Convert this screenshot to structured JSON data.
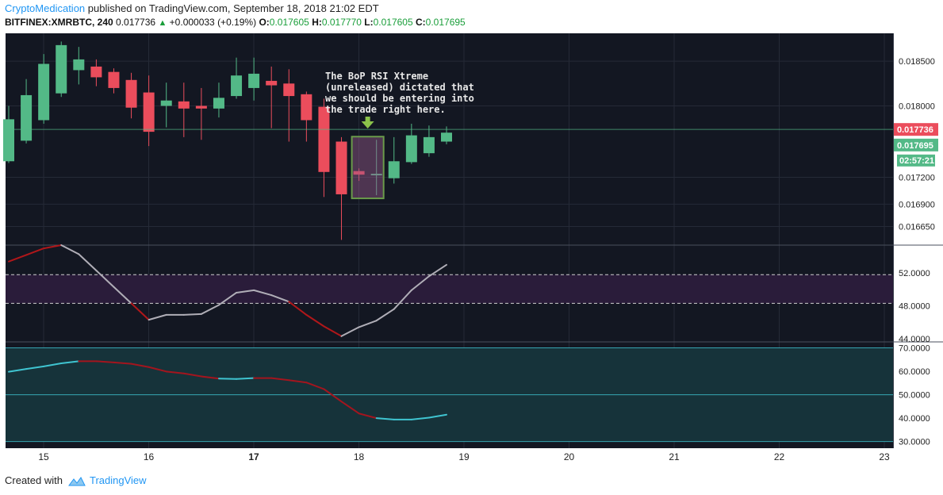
{
  "header": {
    "author": "CryptoMedication",
    "published": " published on TradingView.com, September 18, 2018 21:02 EDT",
    "symbol": "BITFINEX:XMRBTC, 240",
    "last": "0.017736",
    "change_arrow": "▲",
    "change": "+0.000033 (+0.19%)",
    "o_label": "O:",
    "o_value": "0.017605",
    "h_label": "H:",
    "h_value": "0.017770",
    "l_label": "L:",
    "l_value": "0.017605",
    "c_label": "C:",
    "c_value": "0.017695"
  },
  "footer": {
    "created_with": "Created with",
    "brand": "TradingView"
  },
  "colors": {
    "background": "#131722",
    "grid": "#252a37",
    "up": "#53b987",
    "down": "#eb4d5c",
    "rsi_bull": "#b0aeb7",
    "rsi_bear": "#b0171a",
    "osc_bull": "#3fc4d0",
    "osc_bear": "#a3151e",
    "rsi_band": "#2a1c3a",
    "osc_fill": "#16333a",
    "annotation": "#e8e8e8",
    "highlight_box": "#6a9a4a"
  },
  "annotation": {
    "lines": [
      "The BoP RSI Xtreme",
      "(unreleased) dictated that",
      "we should be entering into",
      "the trade right here."
    ],
    "arrow": "green-down-arrow"
  },
  "chart_data": [
    {
      "type": "candlestick",
      "x_ticks": [
        "15",
        "16",
        "17",
        "18",
        "19",
        "20",
        "21",
        "22",
        "23"
      ],
      "y_ticks": [
        "0.018500",
        "0.018000",
        "0.017200",
        "0.016900",
        "0.016650"
      ],
      "price_labels": {
        "last": "0.017736",
        "close": "0.017695",
        "countdown": "02:57:21"
      },
      "ylim": [
        0.01645,
        0.01875
      ],
      "candles": [
        {
          "o": 0.01738,
          "h": 0.018,
          "l": 0.01736,
          "c": 0.01785
        },
        {
          "o": 0.01761,
          "h": 0.0183,
          "l": 0.01758,
          "c": 0.01812
        },
        {
          "o": 0.01784,
          "h": 0.01858,
          "l": 0.0178,
          "c": 0.01847
        },
        {
          "o": 0.01814,
          "h": 0.01872,
          "l": 0.0181,
          "c": 0.01868
        },
        {
          "o": 0.0184,
          "h": 0.01866,
          "l": 0.01824,
          "c": 0.01852
        },
        {
          "o": 0.01844,
          "h": 0.01852,
          "l": 0.01822,
          "c": 0.01832
        },
        {
          "o": 0.01838,
          "h": 0.01842,
          "l": 0.01814,
          "c": 0.0182
        },
        {
          "o": 0.01829,
          "h": 0.01837,
          "l": 0.01786,
          "c": 0.01798
        },
        {
          "o": 0.01815,
          "h": 0.01834,
          "l": 0.01755,
          "c": 0.01771
        },
        {
          "o": 0.018,
          "h": 0.01826,
          "l": 0.01776,
          "c": 0.01806
        },
        {
          "o": 0.01805,
          "h": 0.01826,
          "l": 0.01765,
          "c": 0.01797
        },
        {
          "o": 0.018,
          "h": 0.0182,
          "l": 0.01762,
          "c": 0.01797
        },
        {
          "o": 0.01797,
          "h": 0.01826,
          "l": 0.01787,
          "c": 0.01809
        },
        {
          "o": 0.01811,
          "h": 0.01854,
          "l": 0.01808,
          "c": 0.01834
        },
        {
          "o": 0.0182,
          "h": 0.01854,
          "l": 0.01806,
          "c": 0.01836
        },
        {
          "o": 0.01828,
          "h": 0.01844,
          "l": 0.01775,
          "c": 0.01823
        },
        {
          "o": 0.01825,
          "h": 0.01841,
          "l": 0.0176,
          "c": 0.01811
        },
        {
          "o": 0.01813,
          "h": 0.01816,
          "l": 0.0176,
          "c": 0.01784
        },
        {
          "o": 0.01799,
          "h": 0.01808,
          "l": 0.01698,
          "c": 0.01726
        },
        {
          "o": 0.0176,
          "h": 0.01765,
          "l": 0.0165,
          "c": 0.01701
        },
        {
          "o": 0.01727,
          "h": 0.0173,
          "l": 0.01716,
          "c": 0.01723
        },
        {
          "o": 0.01724,
          "h": 0.01762,
          "l": 0.017,
          "c": 0.01724
        },
        {
          "o": 0.01719,
          "h": 0.01765,
          "l": 0.01713,
          "c": 0.01738
        },
        {
          "o": 0.01737,
          "h": 0.0178,
          "l": 0.01735,
          "c": 0.01767
        },
        {
          "o": 0.01747,
          "h": 0.01778,
          "l": 0.01743,
          "c": 0.01765
        },
        {
          "o": 0.0176,
          "h": 0.01777,
          "l": 0.01757,
          "c": 0.0177
        }
      ],
      "highlight_candles": [
        20,
        21
      ]
    },
    {
      "type": "line",
      "y_ticks": [
        "52.0000",
        "48.0000",
        "44.0000"
      ],
      "ylim": [
        43.7,
        55.3
      ],
      "band": [
        48.3,
        51.8
      ],
      "values": [
        53.4,
        54.2,
        55.0,
        55.4,
        54.3,
        52.3,
        50.3,
        48.3,
        46.3,
        46.9,
        46.9,
        47.0,
        48.1,
        49.6,
        49.9,
        49.3,
        48.5,
        46.9,
        45.5,
        44.3,
        45.4,
        46.2,
        47.6,
        49.9,
        51.6,
        53.0
      ],
      "trend": [
        "bear",
        "bear",
        "bear",
        "bear",
        "bull",
        "bull",
        "bull",
        "bull",
        "bear",
        "bull",
        "bull",
        "bull",
        "bull",
        "bull",
        "bull",
        "bull",
        "bull",
        "bear",
        "bear",
        "bear",
        "bull",
        "bull",
        "bull",
        "bull",
        "bull",
        "bull"
      ]
    },
    {
      "type": "line",
      "y_ticks": [
        "70.0000",
        "60.0000",
        "50.0000",
        "40.0000",
        "30.0000"
      ],
      "ylim": [
        28.2,
        72.2
      ],
      "levels": [
        70,
        50,
        30
      ],
      "values": [
        59.8,
        61.0,
        62.1,
        63.4,
        64.3,
        64.3,
        63.8,
        63.2,
        61.8,
        59.9,
        59.1,
        57.8,
        56.9,
        56.7,
        57.1,
        57.1,
        56.2,
        55.2,
        52.4,
        47.1,
        42.0,
        40.0,
        39.4,
        39.4,
        40.2,
        41.5
      ],
      "trend": [
        "bull",
        "bull",
        "bull",
        "bull",
        "bull",
        "bear",
        "bear",
        "bear",
        "bear",
        "bear",
        "bear",
        "bear",
        "bear",
        "bull",
        "bull",
        "bear",
        "bear",
        "bear",
        "bear",
        "bear",
        "bear",
        "bear",
        "bull",
        "bull",
        "bull",
        "bull"
      ]
    }
  ]
}
